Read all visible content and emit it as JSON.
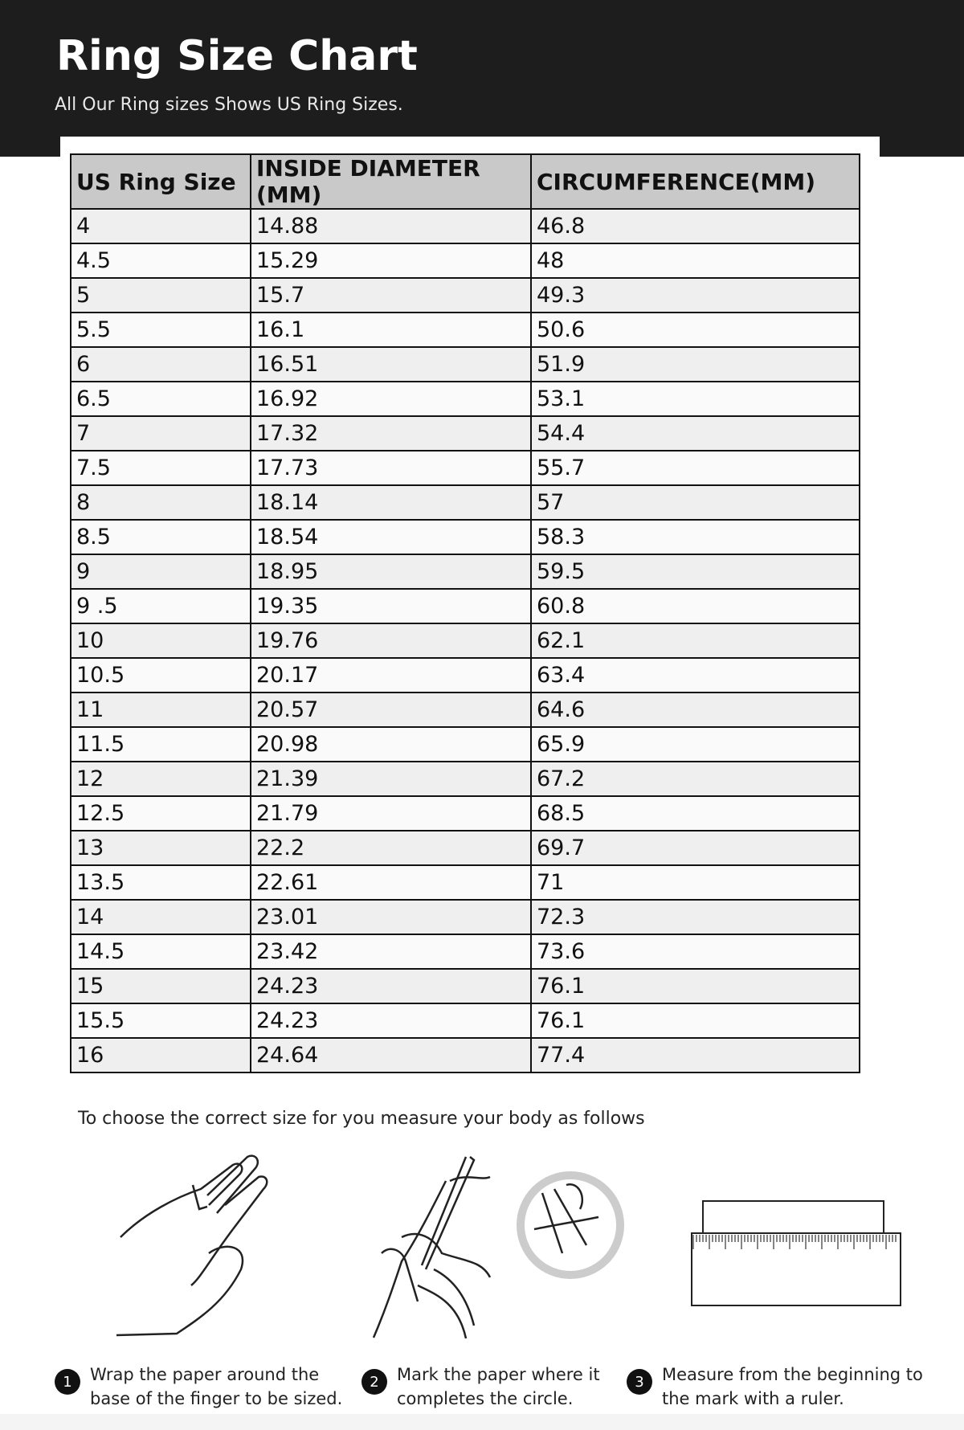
{
  "header": {
    "title": "Ring Size Chart",
    "subtitle": "All Our Ring sizes Shows US Ring Sizes."
  },
  "table": {
    "columns": [
      "US Ring Size",
      "INSIDE DIAMETER (MM)",
      "CIRCUMFERENCE(MM)"
    ],
    "rows": [
      [
        "4",
        "14.88",
        "46.8"
      ],
      [
        "4.5",
        "15.29",
        "48"
      ],
      [
        "5",
        "15.7",
        "49.3"
      ],
      [
        "5.5",
        "16.1",
        "50.6"
      ],
      [
        "6",
        "16.51",
        "51.9"
      ],
      [
        "6.5",
        "16.92",
        "53.1"
      ],
      [
        "7",
        "17.32",
        "54.4"
      ],
      [
        "7.5",
        "17.73",
        "55.7"
      ],
      [
        "8",
        "18.14",
        "57"
      ],
      [
        "8.5",
        "18.54",
        "58.3"
      ],
      [
        "9",
        "18.95",
        "59.5"
      ],
      [
        "9 .5",
        "19.35",
        "60.8"
      ],
      [
        "10",
        "19.76",
        "62.1"
      ],
      [
        "10.5",
        "20.17",
        "63.4"
      ],
      [
        "11",
        "20.57",
        "64.6"
      ],
      [
        "11.5",
        "20.98",
        "65.9"
      ],
      [
        "12",
        "21.39",
        "67.2"
      ],
      [
        "12.5",
        "21.79",
        "68.5"
      ],
      [
        "13",
        "22.2",
        "69.7"
      ],
      [
        "13.5",
        "22.61",
        "71"
      ],
      [
        "14",
        "23.01",
        "72.3"
      ],
      [
        "14.5",
        "23.42",
        "73.6"
      ],
      [
        "15",
        "24.23",
        "76.1"
      ],
      [
        "15.5",
        "24.23",
        "76.1"
      ],
      [
        "16",
        "24.64",
        "77.4"
      ]
    ]
  },
  "instructions": {
    "heading": "To choose the correct size for you measure your body as follows",
    "steps": [
      {
        "number": "1",
        "text": "Wrap the paper around the\nbase of the finger to be sized.",
        "icon": "hand-wrap-icon"
      },
      {
        "number": "2",
        "text": "Mark the paper where it\ncompletes the circle.",
        "icon": "hand-mark-icon"
      },
      {
        "number": "3",
        "text": "Measure from the beginning to\nthe mark with a ruler.",
        "icon": "ruler-icon"
      }
    ]
  }
}
